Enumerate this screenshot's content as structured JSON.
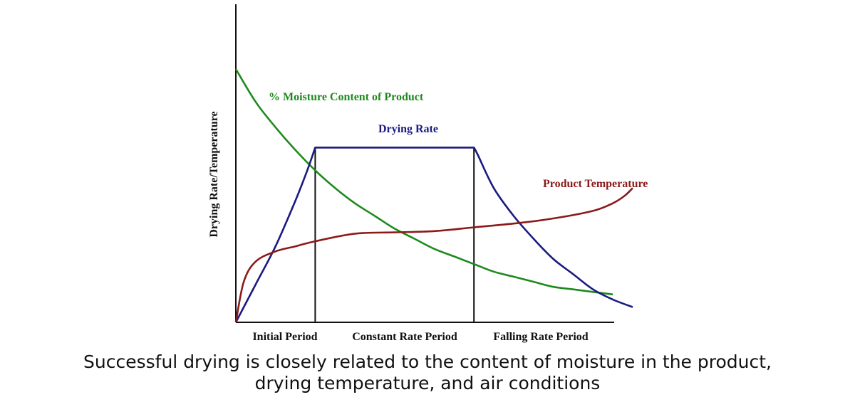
{
  "chart_data": {
    "type": "line",
    "title": "",
    "ylabel": "Drying Rate/Temperature",
    "xlabel": "",
    "grid": false,
    "xlim": [
      0,
      1
    ],
    "ylim": [
      0,
      1
    ],
    "periods": [
      {
        "name": "Initial Period",
        "start": 0.0,
        "end": 0.2
      },
      {
        "name": "Constant Rate Period",
        "start": 0.2,
        "end": 0.6
      },
      {
        "name": "Falling Rate Period",
        "start": 0.6,
        "end": 1.0
      }
    ],
    "series": [
      {
        "name": "% Moisture Content of Product",
        "color": "#1e8a1e",
        "x": [
          0.0,
          0.05,
          0.1,
          0.15,
          0.2,
          0.25,
          0.3,
          0.35,
          0.4,
          0.45,
          0.5,
          0.55,
          0.6,
          0.65,
          0.7,
          0.75,
          0.8,
          0.85,
          0.9,
          0.95
        ],
        "y": [
          1.0,
          0.87,
          0.77,
          0.68,
          0.6,
          0.53,
          0.47,
          0.42,
          0.37,
          0.33,
          0.29,
          0.26,
          0.23,
          0.2,
          0.18,
          0.16,
          0.14,
          0.13,
          0.12,
          0.11
        ]
      },
      {
        "name": "Drying Rate",
        "color": "#1a1a80",
        "x": [
          0.0,
          0.05,
          0.1,
          0.15,
          0.18,
          0.2,
          0.4,
          0.6,
          0.61,
          0.65,
          0.7,
          0.75,
          0.8,
          0.85,
          0.9,
          0.95,
          1.0
        ],
        "y": [
          0.0,
          0.15,
          0.3,
          0.48,
          0.6,
          0.69,
          0.69,
          0.69,
          0.66,
          0.53,
          0.42,
          0.33,
          0.25,
          0.19,
          0.13,
          0.09,
          0.06
        ]
      },
      {
        "name": "Product Temperature",
        "color": "#8b1a1a",
        "x": [
          0.0,
          0.02,
          0.05,
          0.1,
          0.15,
          0.2,
          0.3,
          0.4,
          0.5,
          0.6,
          0.7,
          0.8,
          0.9,
          0.95,
          0.98,
          1.0
        ],
        "y": [
          0.0,
          0.16,
          0.24,
          0.28,
          0.3,
          0.32,
          0.35,
          0.355,
          0.36,
          0.375,
          0.39,
          0.41,
          0.44,
          0.47,
          0.5,
          0.53
        ]
      }
    ]
  },
  "caption": {
    "line1": "Successful drying is closely related to the content of moisture in the product,",
    "line2": "drying temperature, and air conditions"
  }
}
